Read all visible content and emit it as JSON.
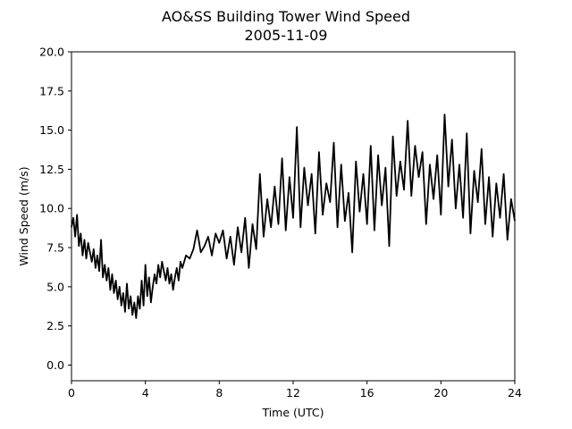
{
  "chart_data": {
    "type": "line",
    "title": "AO&SS Building Tower Wind Speed",
    "subtitle": "2005-11-09",
    "xlabel": "Time (UTC)",
    "ylabel": "Wind Speed (m/s)",
    "xlim": [
      0,
      24
    ],
    "ylim": [
      -1,
      20
    ],
    "xticks": [
      0,
      4,
      8,
      12,
      16,
      20,
      24
    ],
    "xtick_labels": [
      "0",
      "4",
      "8",
      "12",
      "16",
      "20",
      "24"
    ],
    "yticks": [
      0,
      2.5,
      5,
      7.5,
      10,
      12.5,
      15,
      17.5,
      20
    ],
    "ytick_labels": [
      "0.0",
      "2.5",
      "5.0",
      "7.5",
      "10.0",
      "12.5",
      "15.0",
      "17.5",
      "20.0"
    ],
    "grid": false,
    "line_color": "#000000",
    "series": [
      {
        "x": [
          0,
          0.1,
          0.2,
          0.3,
          0.4,
          0.5,
          0.6,
          0.7,
          0.8,
          0.9,
          1.0,
          1.1,
          1.2,
          1.3,
          1.4,
          1.5,
          1.6,
          1.7,
          1.8,
          1.9,
          2.0,
          2.1,
          2.2,
          2.3,
          2.4,
          2.5,
          2.6,
          2.7,
          2.8,
          2.9,
          3.0,
          3.1,
          3.2,
          3.3,
          3.4,
          3.5,
          3.6,
          3.7,
          3.8,
          3.9,
          4.0,
          4.1,
          4.2,
          4.3,
          4.4,
          4.5,
          4.6,
          4.7,
          4.8,
          4.9,
          5.0,
          5.1,
          5.2,
          5.3,
          5.4,
          5.5,
          5.6,
          5.7,
          5.8,
          5.9,
          6.0,
          6.2,
          6.4,
          6.6,
          6.8,
          7.0,
          7.2,
          7.4,
          7.6,
          7.8,
          8.0,
          8.2,
          8.4,
          8.6,
          8.8,
          9.0,
          9.2,
          9.4,
          9.6,
          9.8,
          10.0,
          10.2,
          10.4,
          10.6,
          10.8,
          11.0,
          11.2,
          11.4,
          11.6,
          11.8,
          12.0,
          12.2,
          12.4,
          12.6,
          12.8,
          13.0,
          13.2,
          13.4,
          13.6,
          13.8,
          14.0,
          14.2,
          14.4,
          14.6,
          14.8,
          15.0,
          15.2,
          15.4,
          15.6,
          15.8,
          16.0,
          16.2,
          16.4,
          16.6,
          16.8,
          17.0,
          17.2,
          17.4,
          17.6,
          17.8,
          18.0,
          18.2,
          18.4,
          18.6,
          18.8,
          19.0,
          19.2,
          19.4,
          19.6,
          19.8,
          20.0,
          20.2,
          20.4,
          20.6,
          20.8,
          21.0,
          21.2,
          21.4,
          21.6,
          21.8,
          22.0,
          22.2,
          22.4,
          22.6,
          22.8,
          23.0,
          23.2,
          23.4,
          23.6,
          23.8,
          24.0
        ],
        "values": [
          8.8,
          9.4,
          8.2,
          9.6,
          7.6,
          8.4,
          7.0,
          8.0,
          6.8,
          7.8,
          7.2,
          6.6,
          7.4,
          6.2,
          7.0,
          6.0,
          8.0,
          5.6,
          6.4,
          5.4,
          6.2,
          4.8,
          5.8,
          4.6,
          5.4,
          4.2,
          5.0,
          3.8,
          4.6,
          3.4,
          5.2,
          3.6,
          4.4,
          3.2,
          4.0,
          3.0,
          4.4,
          3.6,
          5.4,
          3.8,
          6.4,
          4.4,
          5.6,
          4.0,
          5.0,
          5.8,
          5.2,
          6.4,
          5.6,
          6.6,
          6.0,
          5.4,
          6.2,
          5.2,
          5.8,
          4.8,
          5.6,
          6.2,
          5.4,
          6.6,
          6.2,
          7.0,
          6.8,
          7.4,
          8.6,
          7.2,
          7.6,
          8.2,
          7.0,
          8.4,
          7.8,
          8.6,
          6.8,
          8.2,
          6.4,
          8.8,
          7.2,
          9.4,
          6.2,
          9.0,
          7.4,
          12.2,
          8.2,
          10.6,
          8.8,
          11.4,
          9.0,
          13.2,
          8.6,
          12.0,
          9.4,
          15.2,
          8.8,
          12.6,
          10.2,
          12.2,
          8.4,
          13.6,
          9.6,
          11.6,
          10.4,
          14.2,
          8.8,
          12.8,
          9.2,
          11.0,
          7.2,
          13.0,
          9.8,
          12.2,
          9.0,
          14.0,
          8.6,
          13.4,
          10.2,
          12.6,
          7.6,
          14.6,
          10.8,
          13.0,
          11.2,
          15.6,
          10.8,
          14.0,
          12.0,
          13.6,
          9.0,
          12.8,
          10.6,
          13.4,
          9.6,
          16.0,
          11.4,
          14.4,
          10.0,
          12.8,
          9.4,
          14.8,
          8.4,
          12.4,
          10.4,
          13.8,
          9.0,
          12.0,
          8.2,
          11.6,
          9.4,
          12.2,
          8.0,
          10.6,
          9.2
        ]
      }
    ]
  }
}
